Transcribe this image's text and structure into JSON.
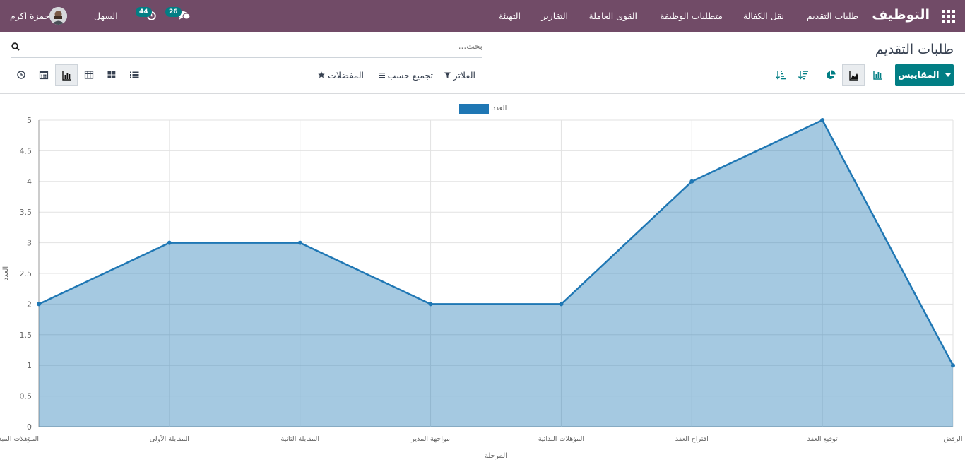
{
  "navbar": {
    "app_title": "التوظيف",
    "menu": [
      "طلبات التقديم",
      "نقل الكفالة",
      "متطلبات الوظيفة",
      "القوى العاملة",
      "التقارير",
      "التهيئة"
    ],
    "messages_count": "26",
    "activities_count": "44",
    "company": "السهل",
    "user_name": "حمزة اكرم"
  },
  "control": {
    "page_title": "طلبات التقديم",
    "search_placeholder": "بحث...",
    "measures_label": "المقاييس",
    "filters_label": "الفلاتر",
    "groupby_label": "تجميع حسب",
    "favorites_label": "المفضلات"
  },
  "chart_data": {
    "type": "area",
    "categories": [
      "المؤهلات المبدئية",
      "المقابلة الأولى",
      "المقابلة الثانية",
      "مواجهة المدير",
      "المؤهلات البدائية",
      "اقتراح العقد",
      "توقيع العقد",
      "الرفض"
    ],
    "series": [
      {
        "name": "العدد",
        "values": [
          2,
          3,
          3,
          2,
          2,
          4,
          5,
          1
        ],
        "color": "#1f77b4"
      }
    ],
    "xlabel": "المرحلة",
    "ylabel": "العدد",
    "ylim": [
      0,
      5
    ],
    "yticks": [
      "0",
      "0.5",
      "1",
      "1.5",
      "2",
      "2.5",
      "3",
      "3.5",
      "4",
      "4.5",
      "5"
    ],
    "legend": "top-center",
    "grid": true
  }
}
